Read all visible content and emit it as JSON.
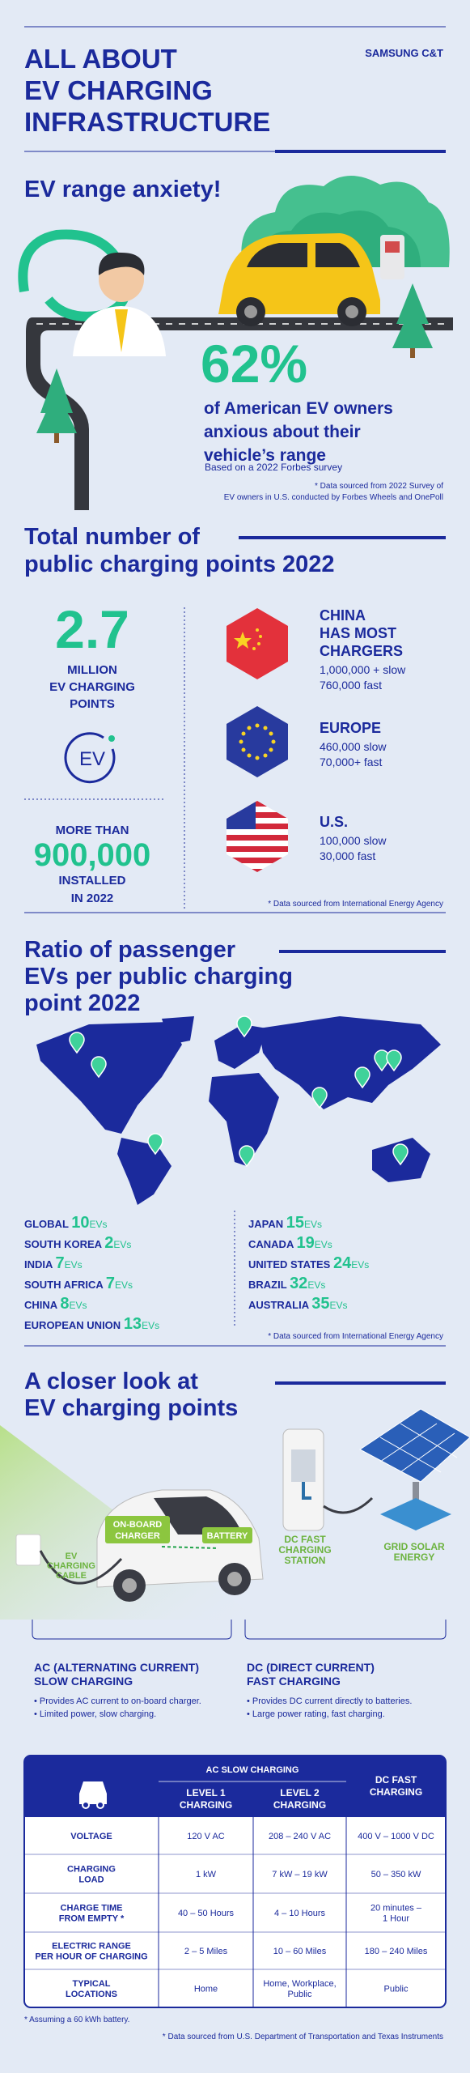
{
  "header": {
    "title": [
      "ALL ABOUT",
      "EV CHARGING",
      "INFRASTRUCTURE"
    ],
    "brand": "SAMSUNG C&T"
  },
  "range_anxiety": {
    "heading": "EV range anxiety!",
    "stat": "62%",
    "description": [
      "of American EV owners",
      "anxious about their",
      "vehicle’s range"
    ],
    "source_note": "Based on a 2022 Forbes survey",
    "footnote": [
      "* Data sourced from 2022 Survey of",
      "EV owners in U.S. conducted by Forbes Wheels and OnePoll"
    ]
  },
  "charging_points": {
    "heading": [
      "Total number of",
      "public charging points 2022"
    ],
    "total": {
      "value": "2.7",
      "label": [
        "MILLION",
        "EV CHARGING",
        "POINTS"
      ]
    },
    "icon_label": "EV",
    "installed": {
      "prefix": "MORE THAN",
      "value": "900,000",
      "label": [
        "INSTALLED",
        "IN 2022"
      ]
    },
    "regions": [
      {
        "name": [
          "CHINA",
          "HAS MOST",
          "CHARGERS"
        ],
        "details": [
          "1,000,000 + slow",
          "760,000 fast"
        ]
      },
      {
        "name": [
          "EUROPE"
        ],
        "details": [
          "460,000 slow",
          "70,000+ fast"
        ]
      },
      {
        "name": [
          "U.S."
        ],
        "details": [
          "100,000 slow",
          "30,000 fast"
        ]
      }
    ],
    "footnote": "* Data sourced from International Energy Agency"
  },
  "ratio": {
    "heading": [
      "Ratio of passenger",
      "EVs per public charging",
      "point 2022"
    ],
    "left": [
      {
        "region": "GLOBAL",
        "value": "10",
        "unit": "EVs"
      },
      {
        "region": "SOUTH KOREA",
        "value": "2",
        "unit": "EVs"
      },
      {
        "region": "INDIA",
        "value": "7",
        "unit": "EVs"
      },
      {
        "region": "SOUTH AFRICA",
        "value": "7",
        "unit": "EVs"
      },
      {
        "region": "CHINA",
        "value": "8",
        "unit": "EVs"
      },
      {
        "region": "EUROPEAN UNION",
        "value": "13",
        "unit": "EVs"
      }
    ],
    "right": [
      {
        "region": "JAPAN",
        "value": "15",
        "unit": "EVs"
      },
      {
        "region": "CANADA",
        "value": "19",
        "unit": "EVs"
      },
      {
        "region": "UNITED STATES",
        "value": "24",
        "unit": "EVs"
      },
      {
        "region": "BRAZIL",
        "value": "32",
        "unit": "EVs"
      },
      {
        "region": "AUSTRALIA",
        "value": "35",
        "unit": "EVs"
      }
    ],
    "footnote": "* Data sourced from International Energy Agency"
  },
  "closer_look": {
    "heading": [
      "A closer look at",
      "EV charging points"
    ],
    "labels": {
      "onboard_charger": [
        "ON-BOARD",
        "CHARGER"
      ],
      "battery": "BATTERY",
      "cable": [
        "EV",
        "CHARGING",
        "CABLE"
      ],
      "station": [
        "DC FAST",
        "CHARGING",
        "STATION"
      ],
      "solar": [
        "GRID SOLAR",
        "ENERGY"
      ]
    },
    "ac": {
      "title": [
        "AC (ALTERNATING CURRENT)",
        "SLOW CHARGING"
      ],
      "bullets": [
        "• Provides AC current to on-board charger.",
        "• Limited power, slow charging."
      ]
    },
    "dc": {
      "title": [
        "DC (DIRECT CURRENT)",
        "FAST CHARGING"
      ],
      "bullets": [
        "• Provides DC current directly to batteries.",
        "• Large power rating, fast charging."
      ]
    }
  },
  "table": {
    "group_header": "AC SLOW CHARGING",
    "columns": [
      [
        "LEVEL 1",
        "CHARGING"
      ],
      [
        "LEVEL 2",
        "CHARGING"
      ],
      [
        "DC FAST",
        "CHARGING"
      ]
    ],
    "rows": [
      {
        "label": [
          "VOLTAGE"
        ],
        "cells": [
          [
            "120 V AC"
          ],
          [
            "208 – 240 V AC"
          ],
          [
            "400 V – 1000 V DC"
          ]
        ]
      },
      {
        "label": [
          "CHARGING",
          "LOAD"
        ],
        "cells": [
          [
            "1 kW"
          ],
          [
            "7 kW – 19 kW"
          ],
          [
            "50 – 350 kW"
          ]
        ]
      },
      {
        "label": [
          "CHARGE TIME",
          "FROM EMPTY *"
        ],
        "cells": [
          [
            "40 – 50 Hours"
          ],
          [
            "4 – 10 Hours"
          ],
          [
            "20 minutes –",
            "1 Hour"
          ]
        ]
      },
      {
        "label": [
          "ELECTRIC RANGE",
          "PER HOUR OF CHARGING"
        ],
        "cells": [
          [
            "2 – 5 Miles"
          ],
          [
            "10 – 60 Miles"
          ],
          [
            "180 – 240 Miles"
          ]
        ]
      },
      {
        "label": [
          "TYPICAL",
          "LOCATIONS"
        ],
        "cells": [
          [
            "Home"
          ],
          [
            "Home, Workplace,",
            "Public"
          ],
          [
            "Public"
          ]
        ]
      }
    ],
    "footnotes": [
      "* Assuming a 60 kWh battery.",
      "* Data sourced from U.S. Department of Transportation and Texas Instruments"
    ]
  }
}
